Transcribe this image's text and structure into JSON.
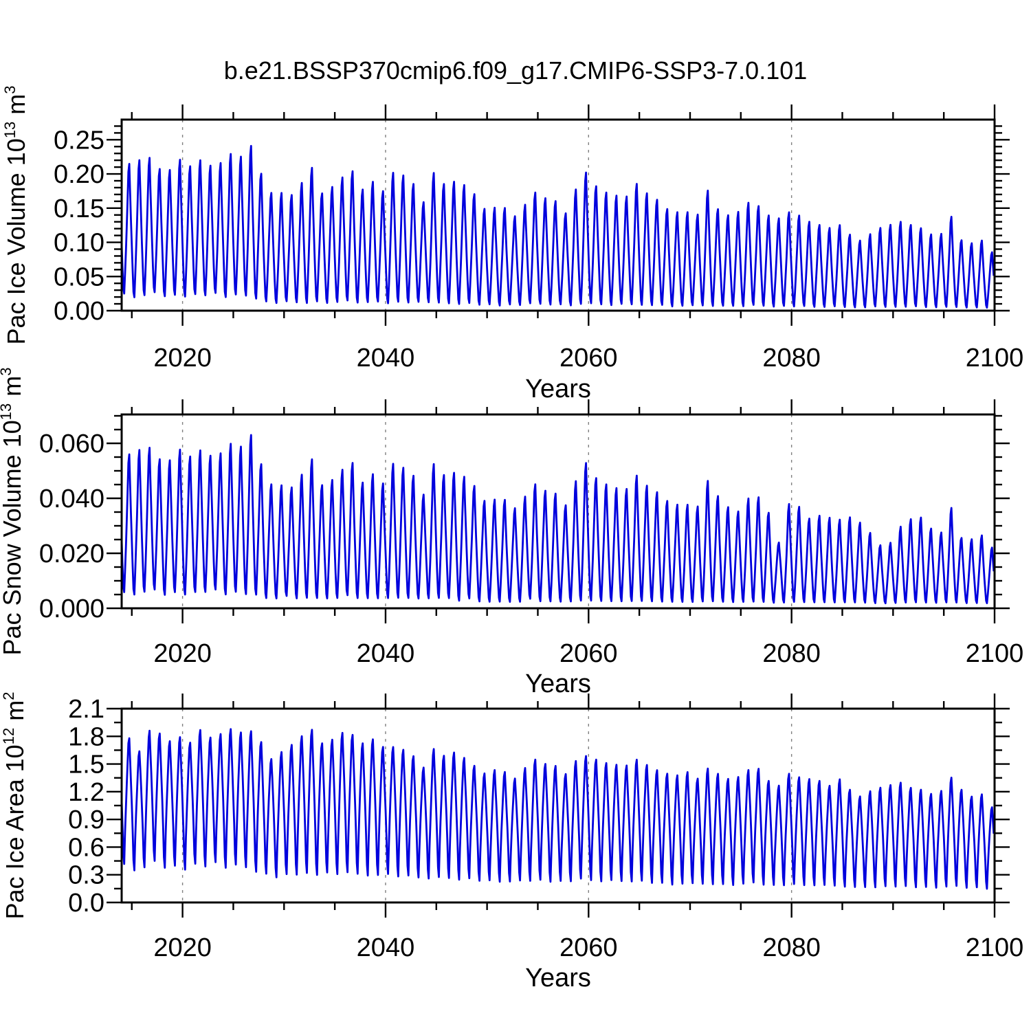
{
  "title": "b.e21.BSSP370cmip6.f09_g17.CMIP6-SSP3-7.0.101",
  "style": {
    "line_color": "#0000DD",
    "grid_color": "#808080",
    "axis_color": "#000000",
    "background": "#FFFFFF"
  },
  "chart_data": [
    {
      "type": "line",
      "panel": "pac-ice-volume",
      "ylabel": "Pac Ice Volume 10^13 m^3",
      "xlabel": "Years",
      "xlim": [
        2014,
        2100
      ],
      "ylim": [
        0,
        0.2795
      ],
      "xticks": [
        2020,
        2040,
        2060,
        2080,
        2100
      ],
      "xtick_labels": [
        "2020",
        "2040",
        "2060",
        "2080",
        "2100"
      ],
      "x_minor_step": 5,
      "yticks": [
        0.0,
        0.05,
        0.1,
        0.15,
        0.2,
        0.25
      ],
      "ytick_labels": [
        "0.00",
        "0.05",
        "0.10",
        "0.15",
        "0.20",
        "0.25"
      ],
      "y_minor_step": 0.01,
      "grid_x": [
        2020,
        2040,
        2060,
        2080
      ],
      "series": {
        "name": "pac-ice-volume-monthly",
        "start_year": 2014,
        "end_year": 2100,
        "samples_per_year": 12,
        "peak_phase": 0.72,
        "peak_shape": 1.2,
        "annual_max": [
          0.23,
          0.236,
          0.24,
          0.222,
          0.22,
          0.237,
          0.226,
          0.236,
          0.227,
          0.231,
          0.246,
          0.241,
          0.26,
          0.216,
          0.185,
          0.185,
          0.181,
          0.2,
          0.226,
          0.184,
          0.194,
          0.209,
          0.22,
          0.19,
          0.203,
          0.187,
          0.217,
          0.213,
          0.2,
          0.169,
          0.217,
          0.199,
          0.203,
          0.198,
          0.184,
          0.16,
          0.162,
          0.162,
          0.148,
          0.166,
          0.186,
          0.177,
          0.173,
          0.152,
          0.19,
          0.218,
          0.196,
          0.186,
          0.181,
          0.179,
          0.2,
          0.185,
          0.175,
          0.16,
          0.155,
          0.155,
          0.15,
          0.19,
          0.16,
          0.15,
          0.155,
          0.17,
          0.165,
          0.15,
          0.145,
          0.155,
          0.15,
          0.14,
          0.135,
          0.13,
          0.135,
          0.12,
          0.11,
          0.12,
          0.13,
          0.135,
          0.14,
          0.135,
          0.13,
          0.12,
          0.12,
          0.149,
          0.111,
          0.106,
          0.111,
          0.092
        ],
        "annual_min": [
          0.018,
          0.012,
          0.015,
          0.02,
          0.014,
          0.016,
          0.013,
          0.017,
          0.015,
          0.019,
          0.012,
          0.016,
          0.014,
          0.01,
          0.007,
          0.005,
          0.008,
          0.006,
          0.004,
          0.007,
          0.005,
          0.006,
          0.008,
          0.005,
          0.006,
          0.007,
          0.004,
          0.006,
          0.005,
          0.007,
          0.006,
          0.005,
          0.004,
          0.003,
          0.005,
          0.003,
          0.004,
          0.002,
          0.004,
          0.003,
          0.005,
          0.004,
          0.003,
          0.004,
          0.002,
          0.003,
          0.004,
          0.003,
          0.002,
          0.004,
          0.003,
          0.002,
          0.002,
          0.003,
          0.001,
          0.002,
          0.003,
          0.002,
          0.001,
          0.002,
          0.002,
          0.001,
          0.003,
          0.002,
          0.001,
          0.002,
          0.001,
          0.002,
          0.001,
          0.001,
          0.002,
          0.001,
          0.001,
          0.001,
          0.002,
          0.001,
          0.001,
          0.001,
          0.002,
          0.001,
          0.001,
          0.001,
          0.001,
          0.001,
          0.001,
          0.001
        ]
      }
    },
    {
      "type": "line",
      "panel": "pac-snow-volume",
      "ylabel": "Pac Snow Volume 10^13 m^3",
      "xlabel": "Years",
      "xlim": [
        2014,
        2100
      ],
      "ylim": [
        0,
        0.0705
      ],
      "xticks": [
        2020,
        2040,
        2060,
        2080,
        2100
      ],
      "xtick_labels": [
        "2020",
        "2040",
        "2060",
        "2080",
        "2100"
      ],
      "x_minor_step": 5,
      "yticks": [
        0.0,
        0.02,
        0.04,
        0.06
      ],
      "ytick_labels": [
        "0.000",
        "0.020",
        "0.040",
        "0.060"
      ],
      "y_minor_step": 0.005,
      "grid_x": [
        2020,
        2040,
        2060,
        2080
      ],
      "series": {
        "name": "pac-snow-volume-monthly",
        "start_year": 2014,
        "end_year": 2100,
        "samples_per_year": 12,
        "peak_phase": 0.72,
        "peak_shape": 1.2,
        "annual_max": [
          0.06,
          0.0617,
          0.0627,
          0.0581,
          0.0576,
          0.062,
          0.0591,
          0.0616,
          0.0594,
          0.0603,
          0.0642,
          0.0629,
          0.068,
          0.0565,
          0.0484,
          0.048,
          0.047,
          0.052,
          0.0585,
          0.048,
          0.05,
          0.054,
          0.057,
          0.049,
          0.0525,
          0.0485,
          0.0565,
          0.055,
          0.052,
          0.044,
          0.0565,
          0.052,
          0.053,
          0.0515,
          0.048,
          0.042,
          0.0425,
          0.0425,
          0.039,
          0.0435,
          0.0485,
          0.046,
          0.045,
          0.04,
          0.0495,
          0.057,
          0.051,
          0.0485,
          0.047,
          0.0465,
          0.052,
          0.048,
          0.0455,
          0.042,
          0.0405,
          0.0405,
          0.0395,
          0.05,
          0.044,
          0.0396,
          0.0377,
          0.0429,
          0.0436,
          0.0377,
          0.0252,
          0.0408,
          0.0398,
          0.035,
          0.0362,
          0.0354,
          0.0346,
          0.0356,
          0.0336,
          0.0296,
          0.0246,
          0.0254,
          0.0318,
          0.0348,
          0.0356,
          0.0312,
          0.0293,
          0.0396,
          0.0275,
          0.0269,
          0.0286,
          0.0237
        ],
        "annual_min": [
          0.004,
          0.003,
          0.004,
          0.005,
          0.003,
          0.004,
          0.003,
          0.004,
          0.004,
          0.005,
          0.003,
          0.004,
          0.003,
          0.003,
          0.002,
          0.002,
          0.003,
          0.002,
          0.002,
          0.002,
          0.002,
          0.002,
          0.003,
          0.002,
          0.002,
          0.002,
          0.002,
          0.002,
          0.002,
          0.002,
          0.002,
          0.002,
          0.002,
          0.001,
          0.002,
          0.001,
          0.001,
          0.001,
          0.001,
          0.001,
          0.002,
          0.001,
          0.001,
          0.001,
          0.001,
          0.001,
          0.001,
          0.001,
          0.001,
          0.001,
          0.001,
          0.001,
          0.001,
          0.001,
          0.001,
          0.001,
          0.001,
          0.001,
          0.001,
          0.001,
          0.001,
          0.001,
          0.001,
          0.001,
          0.001,
          0.001,
          0.001,
          0.001,
          0.001,
          0.001,
          0.001,
          0.001,
          0.001,
          0.001,
          0.001,
          0.001,
          0.001,
          0.001,
          0.001,
          0.001,
          0.001,
          0.001,
          0.001,
          0.001,
          0.001,
          0.001
        ]
      }
    },
    {
      "type": "line",
      "panel": "pac-ice-area",
      "ylabel": "Pac Ice Area 10^12 m^2",
      "xlabel": "Years",
      "xlim": [
        2014,
        2100
      ],
      "ylim": [
        0,
        2.1
      ],
      "xticks": [
        2020,
        2040,
        2060,
        2080,
        2100
      ],
      "xtick_labels": [
        "2020",
        "2040",
        "2060",
        "2080",
        "2100"
      ],
      "x_minor_step": 5,
      "yticks": [
        0.0,
        0.3,
        0.6,
        0.9,
        1.2,
        1.5,
        1.8,
        2.1
      ],
      "ytick_labels": [
        "0.0",
        "0.3",
        "0.6",
        "0.9",
        "1.2",
        "1.5",
        "1.8",
        "2.1"
      ],
      "y_minor_step": 0.15,
      "grid_x": [
        2020,
        2040,
        2060,
        2080
      ],
      "series": {
        "name": "pac-ice-area-monthly",
        "start_year": 2014,
        "end_year": 2100,
        "samples_per_year": 12,
        "peak_phase": 0.72,
        "peak_shape": 0.75,
        "annual_max": [
          1.86,
          1.7,
          1.94,
          1.91,
          1.82,
          1.87,
          1.8,
          1.95,
          1.86,
          1.9,
          1.96,
          1.92,
          1.94,
          1.82,
          1.62,
          1.7,
          1.78,
          1.88,
          1.96,
          1.8,
          1.84,
          1.92,
          1.9,
          1.8,
          1.85,
          1.76,
          1.76,
          1.73,
          1.66,
          1.52,
          1.74,
          1.66,
          1.7,
          1.64,
          1.55,
          1.46,
          1.5,
          1.48,
          1.4,
          1.52,
          1.62,
          1.57,
          1.55,
          1.45,
          1.6,
          1.66,
          1.62,
          1.58,
          1.56,
          1.55,
          1.62,
          1.56,
          1.5,
          1.46,
          1.44,
          1.48,
          1.4,
          1.52,
          1.46,
          1.4,
          1.42,
          1.5,
          1.52,
          1.38,
          1.32,
          1.46,
          1.42,
          1.4,
          1.38,
          1.32,
          1.4,
          1.28,
          1.2,
          1.26,
          1.3,
          1.33,
          1.36,
          1.3,
          1.28,
          1.23,
          1.26,
          1.42,
          1.28,
          1.2,
          1.23,
          1.08
        ],
        "annual_min": [
          0.22,
          0.15,
          0.18,
          0.25,
          0.17,
          0.2,
          0.15,
          0.22,
          0.18,
          0.24,
          0.16,
          0.2,
          0.17,
          0.12,
          0.12,
          0.08,
          0.11,
          0.09,
          0.1,
          0.08,
          0.12,
          0.09,
          0.11,
          0.1,
          0.08,
          0.09,
          0.11,
          0.08,
          0.1,
          0.09,
          0.07,
          0.08,
          0.07,
          0.05,
          0.08,
          0.06,
          0.07,
          0.05,
          0.06,
          0.07,
          0.05,
          0.06,
          0.04,
          0.06,
          0.05,
          0.07,
          0.05,
          0.04,
          0.06,
          0.05,
          0.04,
          0.05,
          0.03,
          0.04,
          0.02,
          0.03,
          0.04,
          0.03,
          0.02,
          0.03,
          0.02,
          0.03,
          0.04,
          0.02,
          0.03,
          0.02,
          0.03,
          0.02,
          0.02,
          0.03,
          0.02,
          0.01,
          0.02,
          0.02,
          0.01,
          0.02,
          0.01,
          0.02,
          0.01,
          0.02,
          0.01,
          0.01,
          0.02,
          0.01,
          0.02,
          0.01
        ]
      }
    }
  ]
}
